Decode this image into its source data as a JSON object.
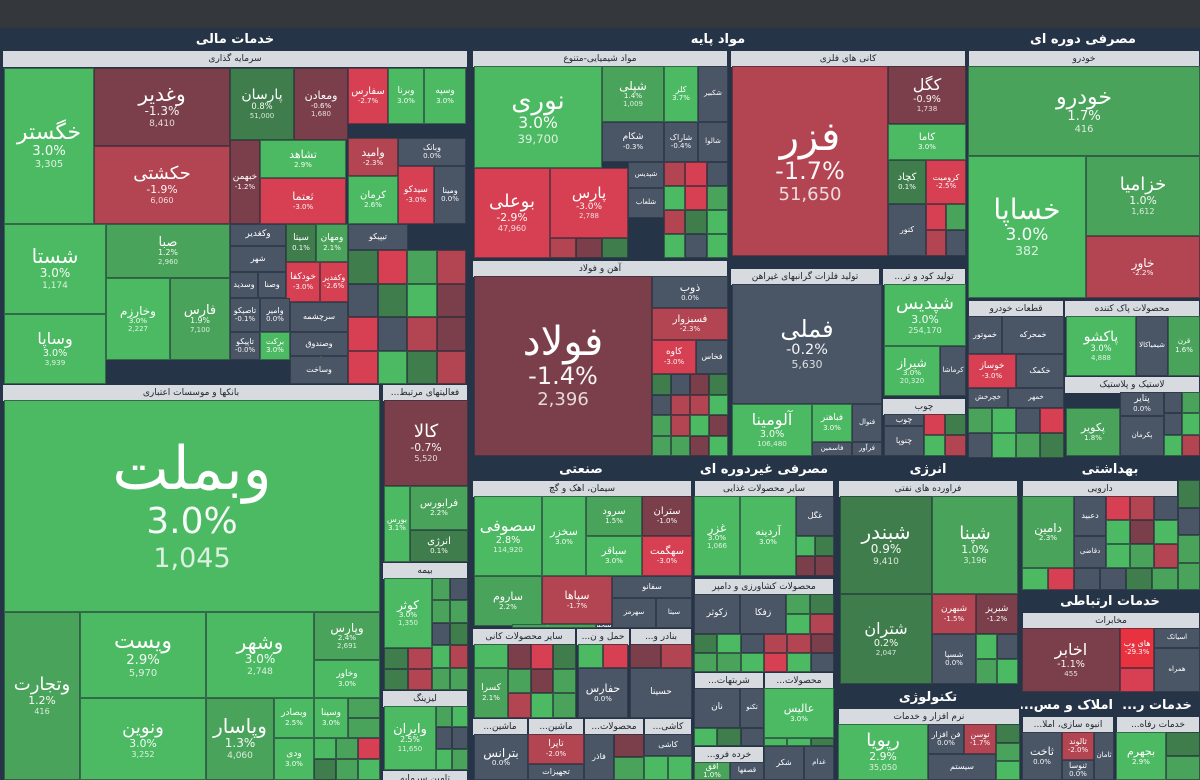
{
  "colors": {
    "up_strong": "#4cba63",
    "up_mid": "#4aa35a",
    "up_weak": "#3f7e4c",
    "flat": "#4a5566",
    "down_weak": "#7a3f4a",
    "down_mid": "#b34451",
    "down_strong": "#d64052",
    "hot_down": "#e8323f"
  },
  "sectors": [
    {
      "id": "khadamat-mali",
      "title": "خدمات مالی"
    },
    {
      "id": "mavad-paye",
      "title": "مواد پایه"
    },
    {
      "id": "masrafi-dore",
      "title": "مصرفی دوره ای"
    },
    {
      "id": "sanati",
      "title": "صنعتی"
    },
    {
      "id": "masrafi-gheir",
      "title": "مصرفی غیردوره ای"
    },
    {
      "id": "energy",
      "title": "انرژی"
    },
    {
      "id": "behdashti",
      "title": "بهداشتی"
    },
    {
      "id": "ertebati",
      "title": "خدمات ارتباطی"
    },
    {
      "id": "technology",
      "title": "تکنولوژی"
    },
    {
      "id": "khadamat-r",
      "title": "خدمات ر..."
    },
    {
      "id": "amlak",
      "title": "املاک و مس..."
    }
  ],
  "industries": [
    {
      "id": "sarmaye",
      "title": "سرمایه گذاری"
    },
    {
      "id": "banks",
      "title": "بانکها و موسسات اعتباری"
    },
    {
      "id": "faaliyat",
      "title": "فعالیتهای مرتبط..."
    },
    {
      "id": "bime",
      "title": "بیمه"
    },
    {
      "id": "lizing",
      "title": "لیزینگ"
    },
    {
      "id": "tamin",
      "title": "تامین سرمایه"
    },
    {
      "id": "shimiyaei",
      "title": "مواد شیمیایی-متنوع"
    },
    {
      "id": "kani",
      "title": "کانی های فلزی"
    },
    {
      "id": "ahan",
      "title": "آهن و فولاد"
    },
    {
      "id": "felezat",
      "title": "تولید فلزات گرانبهای غیراهن"
    },
    {
      "id": "kood",
      "title": "تولید کود و تر..."
    },
    {
      "id": "choob",
      "title": "چوب"
    },
    {
      "id": "khodro",
      "title": "خودرو"
    },
    {
      "id": "ghataat",
      "title": "قطعات خودرو"
    },
    {
      "id": "pak",
      "title": "محصولات پاک کننده"
    },
    {
      "id": "lastik",
      "title": "لاستیک و پلاستیک"
    },
    {
      "id": "siman",
      "title": "سیمان، اهک و گچ"
    },
    {
      "id": "ghazaei",
      "title": "سایر محصولات غذایی"
    },
    {
      "id": "keshavarzi",
      "title": "محصولات کشاورزی و دامپر"
    },
    {
      "id": "sharbat",
      "title": "شربتهات..."
    },
    {
      "id": "mahsoolat",
      "title": "محصولات..."
    },
    {
      "id": "faravarde",
      "title": "فراورده های نفتی"
    },
    {
      "id": "daroei",
      "title": "دارویی"
    },
    {
      "id": "mokhaberat",
      "title": "مخابرات"
    },
    {
      "id": "narm",
      "title": "نرم افزار و خدمات"
    },
    {
      "id": "anbooh",
      "title": "انبوه سازی، املا..."
    },
    {
      "id": "khadamat-refah",
      "title": "خدمات رفاه..."
    },
    {
      "id": "kani-gheir",
      "title": "سایر محصولات کانی"
    },
    {
      "id": "haml",
      "title": "حمل و ن..."
    },
    {
      "id": "mashin",
      "title": "ماشین..."
    },
    {
      "id": "mashin2",
      "title": "ماشین..."
    },
    {
      "id": "mahsoolat2",
      "title": "محصولات..."
    },
    {
      "id": "kashi",
      "title": "کاشی..."
    },
    {
      "id": "khorde",
      "title": "خرده فرو..."
    },
    {
      "id": "bandar",
      "title": "بنادر و..."
    },
    {
      "id": "tajhizat",
      "title": "تجهیزات..."
    }
  ],
  "tiles": [
    {
      "name": "خگستر",
      "pct": "3.0%",
      "price": "3,305"
    },
    {
      "name": "وغدیر",
      "pct": "-1.3%",
      "price": "8,410"
    },
    {
      "name": "حکشتی",
      "pct": "-1.9%",
      "price": "6,060"
    },
    {
      "name": "پارسان",
      "pct": "0.8%",
      "price": "51,000"
    },
    {
      "name": "ومعادن",
      "pct": "-0.6%",
      "price": "1,680"
    },
    {
      "name": "سفارس",
      "pct": "-2.7%"
    },
    {
      "name": "وبرنا",
      "pct": "3.0%"
    },
    {
      "name": "وسپه",
      "pct": "3.0%"
    },
    {
      "name": "شستا",
      "pct": "3.0%",
      "price": "1,174"
    },
    {
      "name": "صبا",
      "pct": "1.2%",
      "price": "2,960"
    },
    {
      "name": "خبهمن",
      "pct": "-1.2%"
    },
    {
      "name": "تشاهد",
      "pct": "2.9%"
    },
    {
      "name": "وامید",
      "pct": "-2.3%"
    },
    {
      "name": "وبانک",
      "pct": "0.0%"
    },
    {
      "name": "ثعتما",
      "pct": "-3.0%"
    },
    {
      "name": "کرمان",
      "pct": "2.6%"
    },
    {
      "name": "سیدکو",
      "pct": "-3.0%"
    },
    {
      "name": "ومینا",
      "pct": "0.0%"
    },
    {
      "name": "وخارزم",
      "pct": "3.0%",
      "price": "2,227"
    },
    {
      "name": "فارس",
      "pct": "1.9%",
      "price": "7,100"
    },
    {
      "name": "وساپا",
      "pct": "3.0%",
      "price": "3,939"
    },
    {
      "name": "وکغدیر"
    },
    {
      "name": "سیتا",
      "pct": "0.1%"
    },
    {
      "name": "ومهان",
      "pct": "2.1%"
    },
    {
      "name": "تیپیکو"
    },
    {
      "name": "شهر"
    },
    {
      "name": "وسدید"
    },
    {
      "name": "وصنا"
    },
    {
      "name": "خودکفا",
      "pct": "-3.0%"
    },
    {
      "name": "وکفدیر",
      "pct": "-2.6%"
    },
    {
      "name": "تاصیکو",
      "pct": "-0.1%"
    },
    {
      "name": "وامیر",
      "pct": "0.0%"
    },
    {
      "name": "سرچشمه"
    },
    {
      "name": "وصندوق"
    },
    {
      "name": "تاپیکو",
      "pct": "-0.0%"
    },
    {
      "name": "برکت",
      "pct": "3.0%"
    },
    {
      "name": "وساخت"
    },
    {
      "name": "پترول",
      "pct": "3.0%"
    },
    {
      "name": "وبملت",
      "pct": "3.0%",
      "price": "1,045"
    },
    {
      "name": "ویست",
      "pct": "2.9%",
      "price": "5,970"
    },
    {
      "name": "وشهر",
      "pct": "3.0%",
      "price": "2,748"
    },
    {
      "name": "وپارس",
      "pct": "2.4%",
      "price": "2,691"
    },
    {
      "name": "وخاور",
      "pct": "3.0%"
    },
    {
      "name": "وتجارت",
      "pct": "1.2%",
      "price": "416"
    },
    {
      "name": "ونوین",
      "pct": "3.0%",
      "price": "3,252"
    },
    {
      "name": "وپاسار",
      "pct": "1.3%",
      "price": "4,060"
    },
    {
      "name": "وبصادر",
      "pct": "2.5%"
    },
    {
      "name": "ودی",
      "pct": "3.0%"
    },
    {
      "name": "وسینا",
      "pct": "3.0%"
    },
    {
      "name": "کالا",
      "pct": "-0.7%",
      "price": "5,520"
    },
    {
      "name": "فرابورس",
      "pct": "2.2%"
    },
    {
      "name": "بورس",
      "pct": "3.1%"
    },
    {
      "name": "انرژی",
      "pct": "0.1%"
    },
    {
      "name": "کوثر",
      "pct": "3.0%",
      "price": "1,350"
    },
    {
      "name": "وایران",
      "pct": "2.5%",
      "price": "11,650"
    },
    {
      "name": "نوری",
      "pct": "3.0%",
      "price": "39,700"
    },
    {
      "name": "شپلی",
      "pct": "1.4%",
      "price": "1,009"
    },
    {
      "name": "کلر",
      "pct": "3.7%"
    },
    {
      "name": "شکبیر"
    },
    {
      "name": "شکام",
      "pct": "-0.3%"
    },
    {
      "name": "شاراک",
      "pct": "-0.4%"
    },
    {
      "name": "شالوا"
    },
    {
      "name": "شپدیس"
    },
    {
      "name": "شلعاب"
    },
    {
      "name": "بوعلی",
      "pct": "-2.9%",
      "price": "47,960"
    },
    {
      "name": "پارس",
      "pct": "-3.0%",
      "price": "2,788"
    },
    {
      "name": "فزر",
      "pct": "-1.7%",
      "price": "51,650"
    },
    {
      "name": "کگل",
      "pct": "-0.9%",
      "price": "1,738"
    },
    {
      "name": "کاما",
      "pct": "3.0%"
    },
    {
      "name": "کچاد",
      "pct": "0.1%"
    },
    {
      "name": "کرومیت",
      "pct": "-2.5%"
    },
    {
      "name": "کنور"
    },
    {
      "name": "فولاد",
      "pct": "-1.4%",
      "price": "2,396"
    },
    {
      "name": "ذوب",
      "pct": "0.0%"
    },
    {
      "name": "فسبزوار",
      "pct": "-2.3%"
    },
    {
      "name": "کاوه",
      "pct": "-3.0%"
    },
    {
      "name": "فخاس"
    },
    {
      "name": "فملی",
      "pct": "-0.2%",
      "price": "5,630"
    },
    {
      "name": "آلومینا",
      "pct": "3.0%",
      "price": "106,480"
    },
    {
      "name": "فباهنر",
      "pct": "3.0%"
    },
    {
      "name": "فنوال"
    },
    {
      "name": "فاسمین"
    },
    {
      "name": "فرآور"
    },
    {
      "name": "شپدیس",
      "pct": "3.0%",
      "price": "254,170"
    },
    {
      "name": "شیراز",
      "pct": "3.0%",
      "price": "20,320"
    },
    {
      "name": "کرماشا"
    },
    {
      "name": "چوب"
    },
    {
      "name": "چنوپا"
    },
    {
      "name": "خودرو",
      "pct": "1.7%",
      "price": "416"
    },
    {
      "name": "خساپا",
      "pct": "3.0%",
      "price": "382"
    },
    {
      "name": "خزامیا",
      "pct": "1.0%",
      "price": "1,612"
    },
    {
      "name": "خاور",
      "pct": "-2.2%"
    },
    {
      "name": "خموتور"
    },
    {
      "name": "خوساز",
      "pct": "-3.0%"
    },
    {
      "name": "خمحرکه"
    },
    {
      "name": "خکمک"
    },
    {
      "name": "خچرخش"
    },
    {
      "name": "خمهر"
    },
    {
      "name": "پاکشو",
      "pct": "3.0%",
      "price": "4,888"
    },
    {
      "name": "شیمیاکالا"
    },
    {
      "name": "قرن",
      "pct": "1.6%"
    },
    {
      "name": "پتایر",
      "pct": "0.0%"
    },
    {
      "name": "پکویر",
      "pct": "1.8%"
    },
    {
      "name": "پکرمان"
    },
    {
      "name": "سصوفی",
      "pct": "2.8%",
      "price": "114,920"
    },
    {
      "name": "سخزر",
      "pct": "3.0%"
    },
    {
      "name": "سرود",
      "pct": "1.5%"
    },
    {
      "name": "سباقر",
      "pct": "3.0%"
    },
    {
      "name": "سهگمت",
      "pct": "-3.0%"
    },
    {
      "name": "ستران",
      "pct": "-1.0%"
    },
    {
      "name": "سپاها",
      "pct": "-1.7%"
    },
    {
      "name": "ساروم",
      "pct": "2.2%"
    },
    {
      "name": "سشرق",
      "pct": "2.3%"
    },
    {
      "name": "سفانو"
    },
    {
      "name": "سهرمز"
    },
    {
      "name": "سیتا"
    },
    {
      "name": "سبجنو"
    },
    {
      "name": "غزر",
      "pct": "3.0%",
      "price": "1,066"
    },
    {
      "name": "آردینه",
      "pct": "3.0%"
    },
    {
      "name": "غگل"
    },
    {
      "name": "زکوثر"
    },
    {
      "name": "زفکا"
    },
    {
      "name": "شبندر",
      "pct": "0.9%",
      "price": "9,410"
    },
    {
      "name": "شپنا",
      "pct": "1.0%",
      "price": "3,196"
    },
    {
      "name": "شتران",
      "pct": "0.2%",
      "price": "2,047"
    },
    {
      "name": "شبهرن",
      "pct": "-1.5%"
    },
    {
      "name": "شبریز",
      "pct": "-1.2%"
    },
    {
      "name": "شسپا",
      "pct": "0.0%"
    },
    {
      "name": "دامین",
      "pct": "2.3%"
    },
    {
      "name": "دعبید"
    },
    {
      "name": "دقاضی"
    },
    {
      "name": "اخابر",
      "pct": "-1.1%",
      "price": "455"
    },
    {
      "name": "های وب",
      "pct": "-29.3%"
    },
    {
      "name": "اسیاتک"
    },
    {
      "name": "همراه"
    },
    {
      "name": "رپویا",
      "pct": "2.9%",
      "price": "35,050"
    },
    {
      "name": "فن افزار",
      "pct": "0.0%"
    },
    {
      "name": "توسن",
      "pct": "-1.7%"
    },
    {
      "name": "سیستم"
    },
    {
      "name": "ثاخت",
      "pct": "0.0%"
    },
    {
      "name": "ثالوند",
      "pct": "-2.0%"
    },
    {
      "name": "ثامان"
    },
    {
      "name": "ثنوسا",
      "pct": "0.0%"
    },
    {
      "name": "بجهرم",
      "pct": "2.9%"
    },
    {
      "name": "کسرا",
      "pct": "2.1%"
    },
    {
      "name": "حفارس",
      "pct": "0.0%"
    },
    {
      "name": "حسینا"
    },
    {
      "name": "بترانس",
      "pct": "0.0%"
    },
    {
      "name": "تاپرا",
      "pct": "-2.0%"
    },
    {
      "name": "تجهیزات"
    },
    {
      "name": "فاذر"
    },
    {
      "name": "کاشی"
    },
    {
      "name": "تکنو"
    },
    {
      "name": "نان"
    },
    {
      "name": "عالیس",
      "pct": "3.0%"
    },
    {
      "name": "اقق",
      "pct": "1.0%"
    },
    {
      "name": "شکر"
    },
    {
      "name": "قصفها"
    },
    {
      "name": "غدام"
    }
  ]
}
